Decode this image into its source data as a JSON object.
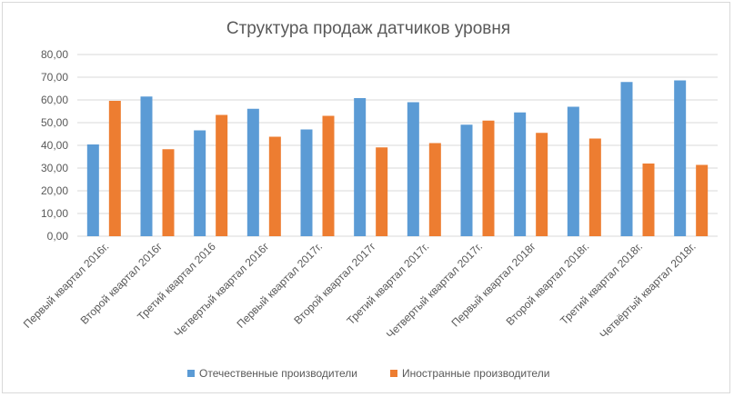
{
  "chart_data": {
    "type": "bar",
    "title": "Структура продаж датчиков уровня",
    "xlabel": "",
    "ylabel": "",
    "ylim": [
      0,
      80
    ],
    "yticks": [
      "0,00",
      "10,00",
      "20,00",
      "30,00",
      "40,00",
      "50,00",
      "60,00",
      "70,00",
      "80,00"
    ],
    "grid": true,
    "legend": "bottom",
    "categories": [
      "Первый квартал 2016г.",
      "Второй квартал 2016г",
      "Третий квартал 2016",
      "Четвертый квартал 2016г",
      "Первый квартал 2017г.",
      "Второй квартал 2017г",
      "Третий квартал 2017г.",
      "Четвертый квартал 2017г.",
      "Первый квартал 2018г",
      "Второй квартал 2018г.",
      "Третий квартал 2018г.",
      "Четвёртый квартал 2018г."
    ],
    "series": [
      {
        "name": "Отечественные производители",
        "color": "#5b9bd5",
        "values": [
          40.4,
          61.5,
          46.6,
          56.1,
          47.0,
          60.8,
          59.0,
          49.1,
          54.5,
          57.0,
          67.9,
          68.6
        ]
      },
      {
        "name": "Иностранные производители",
        "color": "#ed7d31",
        "values": [
          59.6,
          38.3,
          53.4,
          43.8,
          53.0,
          39.1,
          41.0,
          50.9,
          45.5,
          43.0,
          32.0,
          31.4
        ]
      }
    ]
  }
}
